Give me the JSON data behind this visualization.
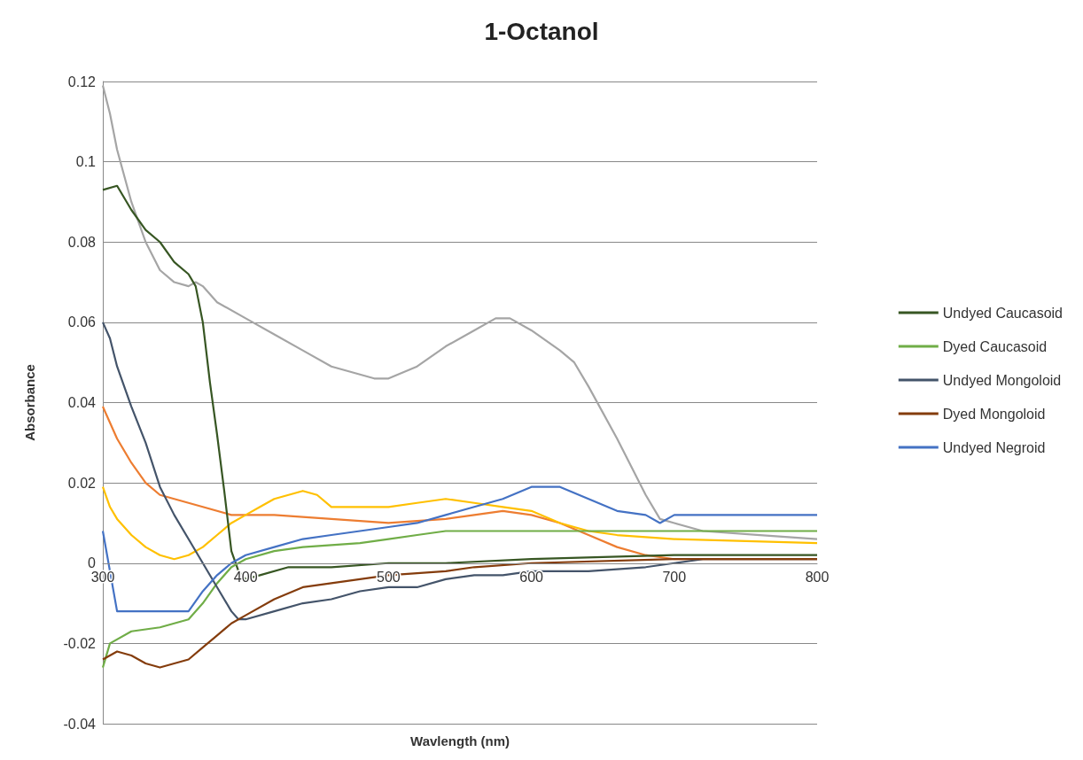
{
  "chart_data": {
    "type": "line",
    "title": "1-Octanol",
    "xlabel": "Wavlength (nm)",
    "ylabel": "Absorbance",
    "xlim": [
      300,
      800
    ],
    "xticks": [
      300,
      400,
      500,
      600,
      700,
      800
    ],
    "ylim": [
      -0.04,
      0.12
    ],
    "yticks": [
      -0.04,
      -0.02,
      0,
      0.02,
      0.04,
      0.06,
      0.08,
      0.1,
      0.12
    ],
    "grid": "y",
    "legend": "right",
    "marker": "none",
    "line_style": "solid",
    "series": [
      {
        "color": "#ed7d31",
        "x": [
          300,
          310,
          320,
          330,
          340,
          350,
          370,
          390,
          420,
          460,
          500,
          540,
          560,
          580,
          600,
          620,
          640,
          660,
          680,
          700,
          800
        ],
        "values": [
          0.039,
          0.031,
          0.025,
          0.02,
          0.017,
          0.016,
          0.014,
          0.012,
          0.012,
          0.011,
          0.01,
          0.011,
          0.012,
          0.013,
          0.012,
          0.01,
          0.007,
          0.004,
          0.002,
          0.001,
          0.001
        ]
      },
      {
        "color": "#a5a5a5",
        "x": [
          300,
          305,
          310,
          320,
          330,
          340,
          350,
          360,
          365,
          370,
          380,
          400,
          420,
          440,
          460,
          480,
          490,
          500,
          520,
          540,
          560,
          575,
          585,
          600,
          620,
          630,
          640,
          660,
          680,
          690,
          700,
          720,
          760,
          800
        ],
        "values": [
          0.119,
          0.112,
          0.103,
          0.09,
          0.08,
          0.073,
          0.07,
          0.069,
          0.07,
          0.069,
          0.065,
          0.061,
          0.057,
          0.053,
          0.049,
          0.047,
          0.046,
          0.046,
          0.049,
          0.054,
          0.058,
          0.061,
          0.061,
          0.058,
          0.053,
          0.05,
          0.044,
          0.031,
          0.017,
          0.011,
          0.01,
          0.008,
          0.007,
          0.006
        ]
      },
      {
        "color": "#ffc000",
        "x": [
          300,
          305,
          310,
          320,
          330,
          340,
          350,
          360,
          370,
          380,
          390,
          400,
          410,
          420,
          440,
          450,
          460,
          480,
          500,
          520,
          540,
          560,
          580,
          600,
          620,
          640,
          660,
          700,
          800
        ],
        "values": [
          0.019,
          0.014,
          0.011,
          0.007,
          0.004,
          0.002,
          0.001,
          0.002,
          0.004,
          0.007,
          0.01,
          0.012,
          0.014,
          0.016,
          0.018,
          0.017,
          0.014,
          0.014,
          0.014,
          0.015,
          0.016,
          0.015,
          0.014,
          0.013,
          0.01,
          0.008,
          0.007,
          0.006,
          0.005
        ]
      },
      {
        "name": "Undyed Caucasoid",
        "color": "#375623",
        "x": [
          300,
          310,
          320,
          330,
          340,
          350,
          360,
          365,
          370,
          375,
          380,
          385,
          390,
          395,
          400,
          410,
          430,
          460,
          500,
          540,
          600,
          700,
          800
        ],
        "values": [
          0.093,
          0.094,
          0.088,
          0.083,
          0.08,
          0.075,
          0.072,
          0.069,
          0.06,
          0.045,
          0.032,
          0.018,
          0.003,
          -0.002,
          -0.004,
          -0.003,
          -0.001,
          -0.001,
          0,
          0,
          0.001,
          0.002,
          0.002
        ]
      },
      {
        "name": "Dyed Caucasoid",
        "color": "#70ad47",
        "x": [
          300,
          305,
          320,
          340,
          350,
          360,
          370,
          380,
          390,
          400,
          420,
          440,
          480,
          500,
          520,
          540,
          580,
          640,
          700,
          800
        ],
        "values": [
          -0.026,
          -0.02,
          -0.017,
          -0.016,
          -0.015,
          -0.014,
          -0.01,
          -0.005,
          -0.001,
          0.001,
          0.003,
          0.004,
          0.005,
          0.006,
          0.007,
          0.008,
          0.008,
          0.008,
          0.008,
          0.008
        ]
      },
      {
        "name": "Undyed Mongoloid",
        "color": "#44546a",
        "x": [
          300,
          305,
          310,
          320,
          330,
          340,
          350,
          360,
          370,
          380,
          390,
          395,
          400,
          420,
          440,
          460,
          480,
          500,
          520,
          540,
          560,
          580,
          600,
          640,
          680,
          700,
          720,
          800
        ],
        "values": [
          0.06,
          0.056,
          0.049,
          0.039,
          0.03,
          0.019,
          0.012,
          0.006,
          0,
          -0.006,
          -0.012,
          -0.014,
          -0.014,
          -0.012,
          -0.01,
          -0.009,
          -0.007,
          -0.006,
          -0.006,
          -0.004,
          -0.003,
          -0.003,
          -0.002,
          -0.002,
          -0.001,
          0,
          0.001,
          0.001
        ]
      },
      {
        "name": "Dyed Mongoloid",
        "color": "#843c0c",
        "x": [
          300,
          310,
          320,
          330,
          340,
          350,
          360,
          370,
          380,
          390,
          400,
          420,
          440,
          460,
          480,
          500,
          540,
          560,
          600,
          700,
          800
        ],
        "values": [
          -0.024,
          -0.022,
          -0.023,
          -0.025,
          -0.026,
          -0.025,
          -0.024,
          -0.021,
          -0.018,
          -0.015,
          -0.013,
          -0.009,
          -0.006,
          -0.005,
          -0.004,
          -0.003,
          -0.002,
          -0.001,
          0,
          0.001,
          0.001
        ]
      },
      {
        "name": "Undyed Negroid",
        "color": "#4472c4",
        "x": [
          300,
          305,
          310,
          320,
          340,
          360,
          370,
          380,
          390,
          400,
          420,
          440,
          460,
          480,
          500,
          520,
          540,
          560,
          580,
          600,
          620,
          640,
          660,
          680,
          690,
          700,
          800
        ],
        "values": [
          0.008,
          -0.002,
          -0.012,
          -0.012,
          -0.012,
          -0.012,
          -0.007,
          -0.003,
          0,
          0.002,
          0.004,
          0.006,
          0.007,
          0.008,
          0.009,
          0.01,
          0.012,
          0.014,
          0.016,
          0.019,
          0.019,
          0.016,
          0.013,
          0.012,
          0.01,
          0.012,
          0.012
        ]
      }
    ]
  }
}
